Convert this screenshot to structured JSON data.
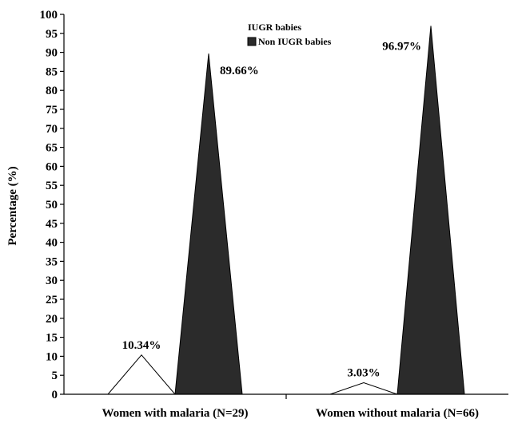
{
  "chart_data": {
    "type": "bar",
    "bar_shape": "triangle",
    "title": "",
    "xlabel": "",
    "ylabel": "Percentage (%)",
    "ylim": [
      0,
      100
    ],
    "y_ticks": [
      0,
      5,
      10,
      15,
      20,
      25,
      30,
      35,
      40,
      45,
      50,
      55,
      60,
      65,
      70,
      75,
      80,
      85,
      90,
      95,
      100
    ],
    "grid": false,
    "legend_position": "top-center",
    "categories": [
      "Women with malaria (N=29)",
      "Women without malaria (N=66)"
    ],
    "series": [
      {
        "name": "IUGR babies",
        "values": [
          10.34,
          3.03
        ],
        "labels": [
          "10.34%",
          "3.03%"
        ],
        "color": "#ffffff",
        "stroke": "#000000"
      },
      {
        "name": "Non IUGR babies",
        "values": [
          89.66,
          96.97
        ],
        "labels": [
          "89.66%",
          "96.97%"
        ],
        "color": "#2b2b2b",
        "stroke": "#000000"
      }
    ]
  }
}
